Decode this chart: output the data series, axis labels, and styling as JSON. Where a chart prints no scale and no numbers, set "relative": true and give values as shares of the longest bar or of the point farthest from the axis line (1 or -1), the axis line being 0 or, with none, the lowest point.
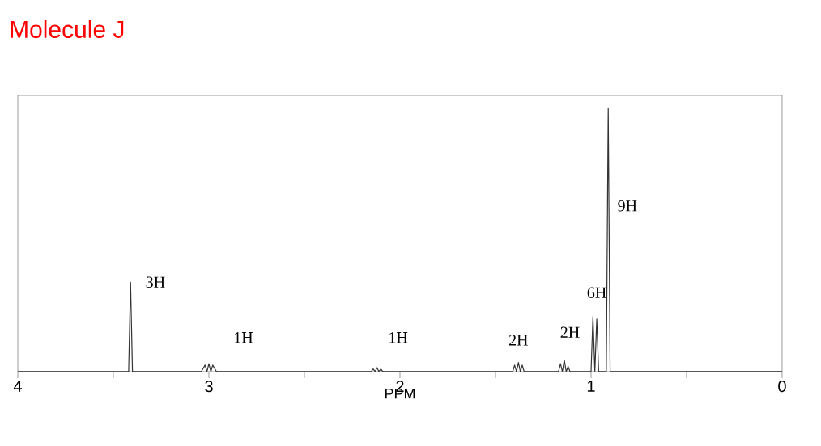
{
  "chart_data": {
    "type": "line",
    "title": "Molecule J",
    "xlabel": "PPM",
    "relative": true,
    "color": "#333333",
    "xlim": [
      4,
      0
    ],
    "xticks": [
      4,
      {
        "value": 3.5,
        "label": null
      },
      3,
      {
        "value": 2.5,
        "label": null
      },
      2,
      {
        "value": 1.5,
        "label": null
      },
      1,
      {
        "value": 0.5,
        "label": null
      },
      0
    ],
    "tick_labels": "x",
    "grid": false,
    "marker": "none",
    "line_style": "solid",
    "x": [
      4.0,
      3.42,
      3.41,
      3.4,
      3.04,
      3.02,
      3.01,
      3.0,
      2.99,
      2.98,
      2.96,
      2.15,
      2.14,
      2.13,
      2.12,
      2.11,
      2.1,
      2.09,
      1.41,
      1.4,
      1.39,
      1.38,
      1.37,
      1.36,
      1.35,
      1.17,
      1.16,
      1.15,
      1.14,
      1.13,
      1.12,
      1.11,
      1.0,
      0.99,
      0.98,
      0.97,
      0.96,
      0.92,
      0.91,
      0.9,
      0.0
    ],
    "values": [
      0,
      0,
      0.34,
      0,
      0,
      0.025,
      0,
      0.03,
      0,
      0.025,
      0,
      0,
      0.01,
      0,
      0.015,
      0,
      0.01,
      0,
      0,
      0.025,
      0,
      0.035,
      0,
      0.025,
      0,
      0,
      0.03,
      0,
      0.045,
      0,
      0.02,
      0,
      0,
      0.21,
      0,
      0.2,
      0,
      0,
      1,
      0,
      0
    ],
    "annotations": [
      "3H",
      "1H",
      "1H",
      "2H",
      "2H",
      "6H",
      "9H"
    ]
  }
}
